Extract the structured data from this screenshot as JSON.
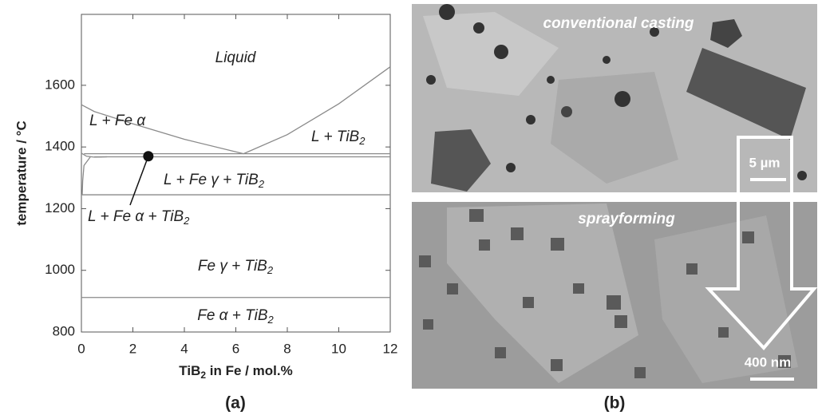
{
  "chart_data": {
    "type": "line",
    "x_label": {
      "text": "TiB",
      "sub": "2",
      "rest": " in Fe / mol.%"
    },
    "y_label": "temperature / °C",
    "xlim": [
      0,
      12
    ],
    "ylim": [
      800,
      1830
    ],
    "xticks": [
      0,
      2,
      4,
      6,
      8,
      10,
      12
    ],
    "yticks": [
      800,
      1000,
      1200,
      1400,
      1600
    ],
    "series": [
      {
        "color": "#8a8a8a",
        "x": [
          0,
          0.5,
          2,
          4,
          6.3
        ],
        "values": [
          1537,
          1515,
          1475,
          1425,
          1378
        ]
      },
      {
        "color": "#8a8a8a",
        "x": [
          6.3,
          8,
          10,
          12
        ],
        "values": [
          1378,
          1440,
          1540,
          1660
        ]
      },
      {
        "color": "#8a8a8a",
        "x": [
          0.1,
          12
        ],
        "values": [
          1378,
          1378
        ]
      },
      {
        "color": "#8a8a8a",
        "x": [
          0.5,
          12
        ],
        "values": [
          1368,
          1368
        ]
      },
      {
        "color": "#8a8a8a",
        "x": [
          0,
          0.2,
          0.5,
          1
        ],
        "values": [
          1380,
          1370,
          1367,
          1368
        ]
      },
      {
        "color": "#8a8a8a",
        "x": [
          0.35,
          0.1,
          0.05,
          0.03
        ],
        "values": [
          1368,
          1340,
          1290,
          1245
        ]
      },
      {
        "color": "#8a8a8a",
        "x": [
          0,
          12
        ],
        "values": [
          1245,
          1245
        ]
      },
      {
        "color": "#8a8a8a",
        "x": [
          0,
          12
        ],
        "values": [
          912,
          912
        ]
      }
    ],
    "marker": {
      "x": 2.6,
      "y": 1370
    },
    "annotations": [
      {
        "text": "Liquid"
      },
      {
        "text": "L + Fe α"
      },
      {
        "text": "L + TiB",
        "sub": "2"
      },
      {
        "text": "L + Fe γ + TiB",
        "sub": "2"
      },
      {
        "text": "L + Fe α + TiB",
        "sub": "2"
      },
      {
        "text": "Fe γ + TiB",
        "sub": "2"
      },
      {
        "text": "Fe α + TiB",
        "sub": "2"
      }
    ],
    "caption": "(a)"
  },
  "micrographs": {
    "top_label": "conventional casting",
    "top_scale": "5 µm",
    "bottom_label": "sprayforming",
    "bottom_scale": "400 nm",
    "caption": "(b)"
  }
}
